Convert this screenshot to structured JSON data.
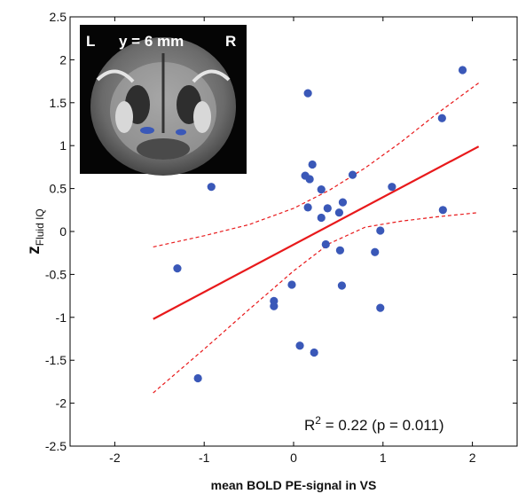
{
  "chart_data": {
    "type": "scatter",
    "xlabel": "mean BOLD PE-signal in VS",
    "ylabel_main": "z",
    "ylabel_sub": "Fluid IQ",
    "xlim": [
      -2.5,
      2.5
    ],
    "ylim": [
      -2.5,
      2.5
    ],
    "x_ticks": [
      -2,
      -1,
      0,
      1,
      2
    ],
    "y_ticks": [
      2.5,
      2,
      1.5,
      1,
      0.5,
      0,
      -0.5,
      -1,
      -1.5,
      -2,
      -2.5
    ],
    "y_tick_labels": [
      "2.5",
      "2",
      "1.5",
      "1",
      "0.5",
      "0",
      "-0.5",
      "-1",
      "-1.5",
      "-2",
      "-2.5"
    ],
    "points": [
      {
        "x": -1.3,
        "y": -0.43
      },
      {
        "x": -0.92,
        "y": 0.52
      },
      {
        "x": -1.07,
        "y": -1.71
      },
      {
        "x": -0.22,
        "y": -0.81
      },
      {
        "x": -0.22,
        "y": -0.87
      },
      {
        "x": -0.02,
        "y": -0.62
      },
      {
        "x": 0.07,
        "y": -1.33
      },
      {
        "x": 0.16,
        "y": 1.61
      },
      {
        "x": 0.13,
        "y": 0.65
      },
      {
        "x": 0.18,
        "y": 0.61
      },
      {
        "x": 0.21,
        "y": 0.78
      },
      {
        "x": 0.16,
        "y": 0.28
      },
      {
        "x": 0.23,
        "y": -1.41
      },
      {
        "x": 0.31,
        "y": 0.49
      },
      {
        "x": 0.31,
        "y": 0.16
      },
      {
        "x": 0.38,
        "y": 0.27
      },
      {
        "x": 0.36,
        "y": -0.15
      },
      {
        "x": 0.51,
        "y": 0.22
      },
      {
        "x": 0.55,
        "y": 0.34
      },
      {
        "x": 0.66,
        "y": 0.66
      },
      {
        "x": 0.52,
        "y": -0.22
      },
      {
        "x": 0.54,
        "y": -0.63
      },
      {
        "x": 0.91,
        "y": -0.24
      },
      {
        "x": 0.97,
        "y": 0.01
      },
      {
        "x": 0.97,
        "y": -0.89
      },
      {
        "x": 1.1,
        "y": 0.52
      },
      {
        "x": 1.66,
        "y": 1.32
      },
      {
        "x": 1.89,
        "y": 1.88
      },
      {
        "x": 1.67,
        "y": 0.25
      }
    ],
    "fit_line": {
      "x": [
        -1.57,
        2.07
      ],
      "y": [
        -1.02,
        0.99
      ]
    },
    "ci_upper": {
      "x": [
        -1.57,
        -1.0,
        -0.5,
        0.0,
        0.4,
        0.8,
        1.2,
        1.6,
        2.07
      ],
      "y": [
        -0.18,
        -0.05,
        0.08,
        0.27,
        0.48,
        0.74,
        1.04,
        1.37,
        1.73
      ]
    },
    "ci_lower": {
      "x": [
        -1.57,
        -1.0,
        -0.5,
        0.0,
        0.4,
        0.8,
        1.2,
        1.6,
        2.07
      ],
      "y": [
        -1.88,
        -1.37,
        -0.91,
        -0.46,
        -0.14,
        0.05,
        0.12,
        0.17,
        0.22
      ]
    },
    "annotation": {
      "prefix": "R",
      "sup": "2",
      "suffix": " = 0.22 (p = 0.011)"
    },
    "inset": {
      "left_label": "L",
      "slice_label": "y = 6 mm",
      "right_label": "R"
    },
    "colors": {
      "points": "#3a58b8",
      "fit": "#e8191b",
      "ci": "#e8191b",
      "inset_blob": "#3a58b8"
    }
  }
}
